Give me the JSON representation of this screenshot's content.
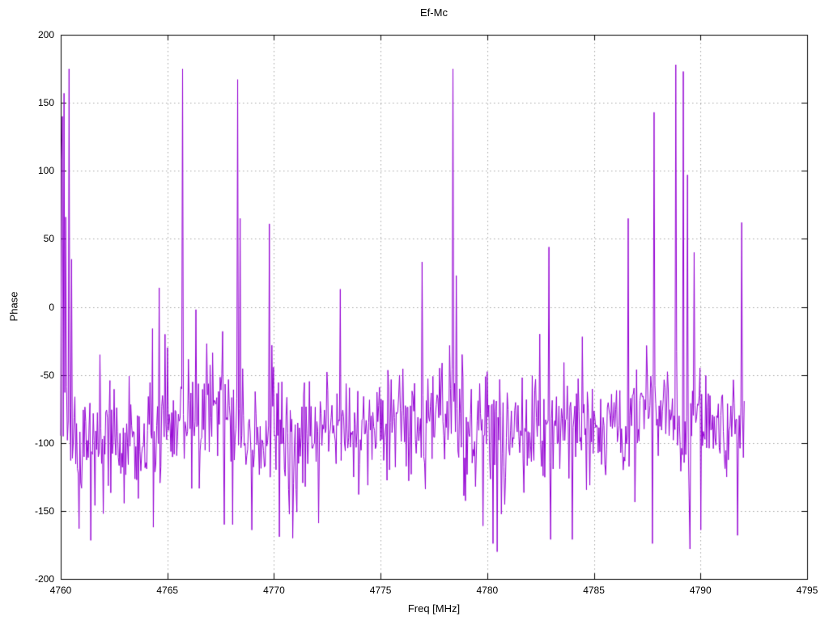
{
  "chart_data": {
    "type": "line",
    "title": "Ef-Mc",
    "xlabel": "Freq [MHz]",
    "ylabel": "Phase",
    "xlim": [
      4760,
      4795
    ],
    "ylim": [
      -200,
      200
    ],
    "xticks": [
      4760,
      4765,
      4770,
      4775,
      4780,
      4785,
      4790,
      4795
    ],
    "yticks": [
      -200,
      -150,
      -100,
      -50,
      0,
      50,
      100,
      150,
      200
    ],
    "grid": true,
    "legend": "none",
    "line_color": "#9400d3",
    "grid_color": "#a6a6a6",
    "axis_color": "#000000",
    "series": [
      {
        "name": "Ef-Mc",
        "x_start": 4760.0,
        "x_end": 4792.05,
        "n_points": 820,
        "seed": 1337,
        "baseline": -88,
        "noise_sigma": 20,
        "wander_sigma": 7,
        "dip_prob": 0.035,
        "dip_extra": 62,
        "pop_prob": 0.02,
        "pop_extra": 40,
        "clip_low": -183,
        "clip_high": -18,
        "spikes": [
          {
            "x": 4760.02,
            "y": 108
          },
          {
            "x": 4760.07,
            "y": 140
          },
          {
            "x": 4760.14,
            "y": 157
          },
          {
            "x": 4760.24,
            "y": 66
          },
          {
            "x": 4760.38,
            "y": 175
          },
          {
            "x": 4760.52,
            "y": 35
          },
          {
            "x": 4760.85,
            "y": -163
          },
          {
            "x": 4761.6,
            "y": -146
          },
          {
            "x": 4762.0,
            "y": -152
          },
          {
            "x": 4764.3,
            "y": -16
          },
          {
            "x": 4764.33,
            "y": -162
          },
          {
            "x": 4764.62,
            "y": 14
          },
          {
            "x": 4765.0,
            "y": -30
          },
          {
            "x": 4765.7,
            "y": 175
          },
          {
            "x": 4766.35,
            "y": -2
          },
          {
            "x": 4767.67,
            "y": -160
          },
          {
            "x": 4768.05,
            "y": -160
          },
          {
            "x": 4768.28,
            "y": 167
          },
          {
            "x": 4768.42,
            "y": 65
          },
          {
            "x": 4768.96,
            "y": -164
          },
          {
            "x": 4769.8,
            "y": 61
          },
          {
            "x": 4770.25,
            "y": -169
          },
          {
            "x": 4770.86,
            "y": -170
          },
          {
            "x": 4773.1,
            "y": 13
          },
          {
            "x": 4776.93,
            "y": 33
          },
          {
            "x": 4778.41,
            "y": 175
          },
          {
            "x": 4778.55,
            "y": 23
          },
          {
            "x": 4779.82,
            "y": -161
          },
          {
            "x": 4780.27,
            "y": -174
          },
          {
            "x": 4780.46,
            "y": -180
          },
          {
            "x": 4782.45,
            "y": -20
          },
          {
            "x": 4782.89,
            "y": 44
          },
          {
            "x": 4782.97,
            "y": -171
          },
          {
            "x": 4783.99,
            "y": -171
          },
          {
            "x": 4784.45,
            "y": -22
          },
          {
            "x": 4786.61,
            "y": 65
          },
          {
            "x": 4787.75,
            "y": -174
          },
          {
            "x": 4787.83,
            "y": 143
          },
          {
            "x": 4788.85,
            "y": 178
          },
          {
            "x": 4789.19,
            "y": 173
          },
          {
            "x": 4789.38,
            "y": 97
          },
          {
            "x": 4789.5,
            "y": -178
          },
          {
            "x": 4789.69,
            "y": 40
          },
          {
            "x": 4790.0,
            "y": -164
          },
          {
            "x": 4791.74,
            "y": -168
          },
          {
            "x": 4791.93,
            "y": 62
          }
        ]
      }
    ]
  }
}
